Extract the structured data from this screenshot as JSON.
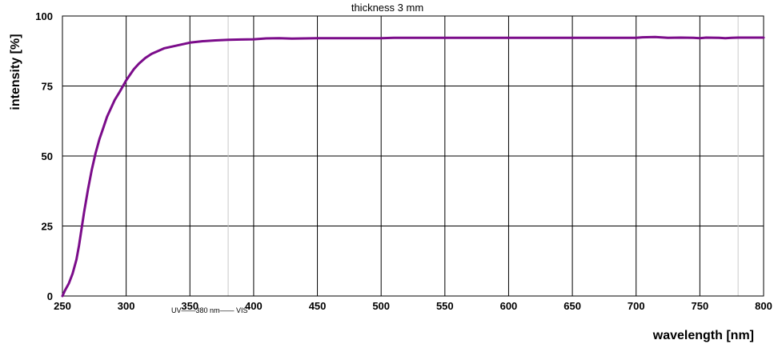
{
  "chart_data": {
    "type": "line",
    "title": "thickness 3 mm",
    "xlabel": "wavelength [nm]",
    "ylabel": "intensity [%]",
    "xlim": [
      250,
      800
    ],
    "ylim": [
      0,
      100
    ],
    "x_ticks": [
      250,
      300,
      350,
      400,
      450,
      500,
      550,
      600,
      650,
      700,
      750,
      800
    ],
    "y_ticks": [
      0,
      25,
      50,
      75,
      100
    ],
    "grid": true,
    "annotation": "UV——380 nm—— VIS",
    "annotation_x": 380,
    "reference_lines_x": [
      380,
      780
    ],
    "series": [
      {
        "color": "#7B0C8A",
        "x": [
          250,
          252,
          255,
          258,
          261,
          263,
          265,
          267,
          270,
          273,
          276,
          279,
          282,
          285,
          288,
          291,
          295,
          300,
          303,
          306,
          310,
          315,
          320,
          325,
          330,
          340,
          350,
          360,
          370,
          380,
          390,
          400,
          410,
          420,
          430,
          440,
          450,
          500,
          510,
          520,
          550,
          600,
          650,
          700,
          705,
          715,
          725,
          735,
          745,
          750,
          755,
          765,
          770,
          775,
          780,
          800
        ],
        "y": [
          0,
          2,
          4.5,
          8,
          13,
          18,
          24,
          30,
          38,
          45,
          51,
          56,
          60,
          64,
          67,
          70,
          73,
          77,
          79,
          81,
          83,
          85,
          86.5,
          87.5,
          88.5,
          89.5,
          90.5,
          91,
          91.3,
          91.5,
          91.6,
          91.7,
          92,
          92.1,
          91.9,
          92,
          92.1,
          92.1,
          92.2,
          92.2,
          92.2,
          92.2,
          92.2,
          92.2,
          92.4,
          92.5,
          92.2,
          92.3,
          92.2,
          92.1,
          92.3,
          92.2,
          92.1,
          92.2,
          92.3,
          92.3
        ]
      }
    ]
  }
}
